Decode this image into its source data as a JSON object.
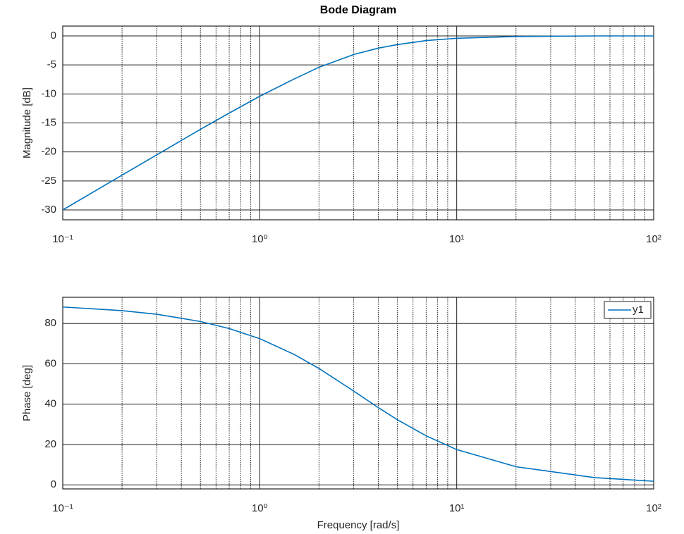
{
  "chart_data": [
    {
      "type": "line",
      "title": "Bode Diagram",
      "ylabel": "Magnitude [dB]",
      "x": [
        0.1,
        0.2,
        0.3,
        0.5,
        0.7,
        1,
        1.5,
        2,
        3,
        4,
        5,
        7,
        10,
        20,
        50,
        100
      ],
      "series": [
        {
          "color": "#0072bd",
          "values": [
            -30.0,
            -24.0,
            -20.5,
            -16.1,
            -13.3,
            -10.4,
            -7.4,
            -5.4,
            -3.2,
            -2.1,
            -1.5,
            -0.8,
            -0.4,
            -0.1,
            0.0,
            0.0
          ]
        }
      ],
      "xscale": "log",
      "xlim": [
        0.1,
        100
      ],
      "xticks": [
        {
          "value": 0.1,
          "label": "10⁻¹"
        },
        {
          "value": 1,
          "label": "10⁰"
        },
        {
          "value": 10,
          "label": "10¹"
        },
        {
          "value": 100,
          "label": "10²"
        }
      ],
      "ylim": [
        -31.7,
        1.7
      ],
      "yticks": [
        -30,
        -25,
        -20,
        -15,
        -10,
        -5,
        0
      ],
      "grid": true,
      "minor_grid": true
    },
    {
      "type": "line",
      "ylabel": "Phase [deg]",
      "xlabel": "Frequency [rad/s]",
      "x": [
        0.1,
        0.2,
        0.3,
        0.5,
        0.7,
        1,
        1.5,
        2,
        3,
        4,
        5,
        7,
        10,
        20,
        50,
        100
      ],
      "series": [
        {
          "name": "y1",
          "color": "#0072bd",
          "values": [
            88.2,
            86.4,
            84.6,
            81.0,
            77.5,
            72.5,
            64.6,
            57.7,
            46.5,
            38.3,
            32.3,
            24.3,
            17.5,
            9.0,
            3.6,
            1.8
          ]
        }
      ],
      "xscale": "log",
      "xlim": [
        0.1,
        100
      ],
      "xticks": [
        {
          "value": 0.1,
          "label": "10⁻¹"
        },
        {
          "value": 1,
          "label": "10⁰"
        },
        {
          "value": 10,
          "label": "10¹"
        },
        {
          "value": 100,
          "label": "10²"
        }
      ],
      "ylim": [
        -2,
        93
      ],
      "yticks": [
        0,
        20,
        40,
        60,
        80
      ],
      "grid": true,
      "minor_grid": true,
      "legend": "upper right"
    }
  ]
}
